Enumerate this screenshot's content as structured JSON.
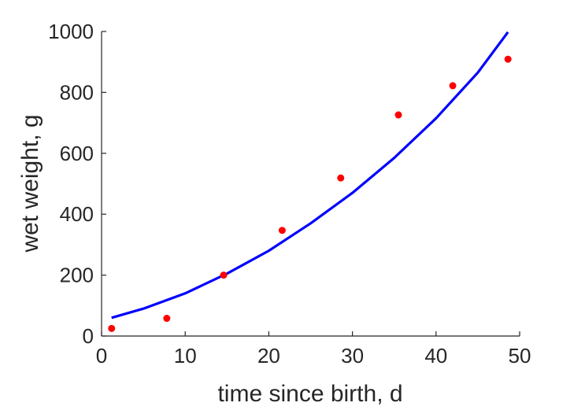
{
  "chart_data": {
    "type": "scatter",
    "title": "",
    "xlabel": "time since birth, d",
    "ylabel": "wet weight, g",
    "xlim": [
      0,
      50
    ],
    "ylim": [
      0,
      1000
    ],
    "xticks": [
      0,
      10,
      20,
      30,
      40,
      50
    ],
    "yticks": [
      0,
      200,
      400,
      600,
      800,
      1000
    ],
    "grid": false,
    "legend": "none",
    "series": [
      {
        "kind": "points",
        "color": "#ff0000",
        "x": [
          1.2,
          7.8,
          14.6,
          21.6,
          28.6,
          35.5,
          42.0,
          48.6
        ],
        "y": [
          25,
          58,
          200,
          347,
          519,
          726,
          822,
          909
        ]
      },
      {
        "kind": "line",
        "color": "#0000ff",
        "x": [
          1.2,
          5,
          10,
          15,
          20,
          25,
          30,
          35,
          40,
          45,
          48.6
        ],
        "y": [
          60,
          90,
          140,
          205,
          280,
          370,
          470,
          585,
          715,
          865,
          998
        ]
      }
    ]
  }
}
